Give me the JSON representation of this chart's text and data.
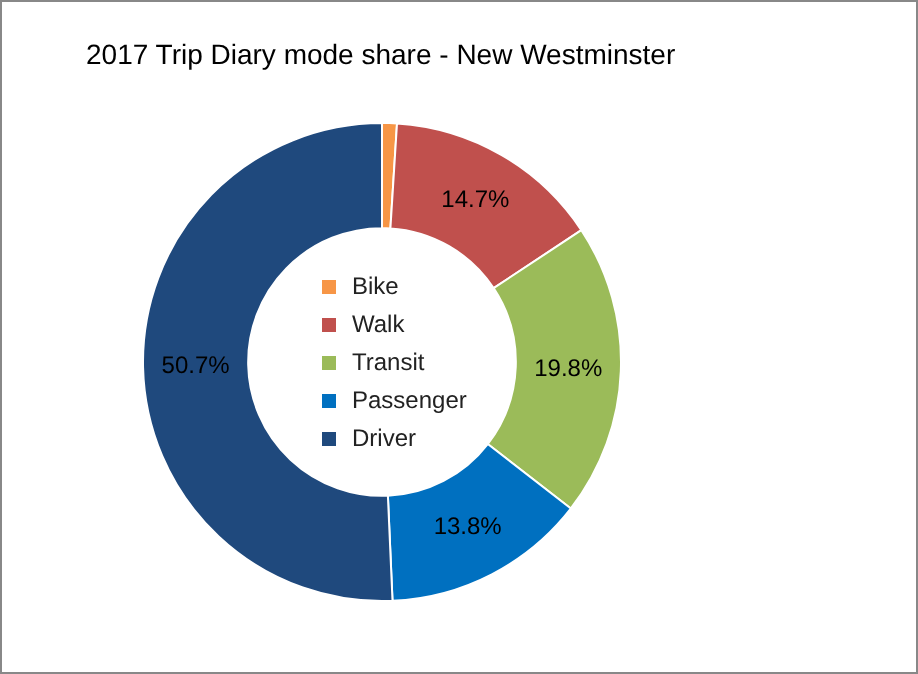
{
  "chart_data": {
    "type": "donut",
    "title": "2017 Trip Diary mode share - New Westminster",
    "categories": [
      "Bike",
      "Walk",
      "Transit",
      "Passenger",
      "Driver"
    ],
    "values": [
      1.0,
      14.7,
      19.8,
      13.8,
      50.7
    ],
    "value_labels": [
      null,
      "14.7%",
      "19.8%",
      "13.8%",
      "50.7%"
    ],
    "colors": [
      "#f79646",
      "#c0504d",
      "#9bbb59",
      "#0070c0",
      "#1f497d"
    ],
    "legend": "center"
  }
}
